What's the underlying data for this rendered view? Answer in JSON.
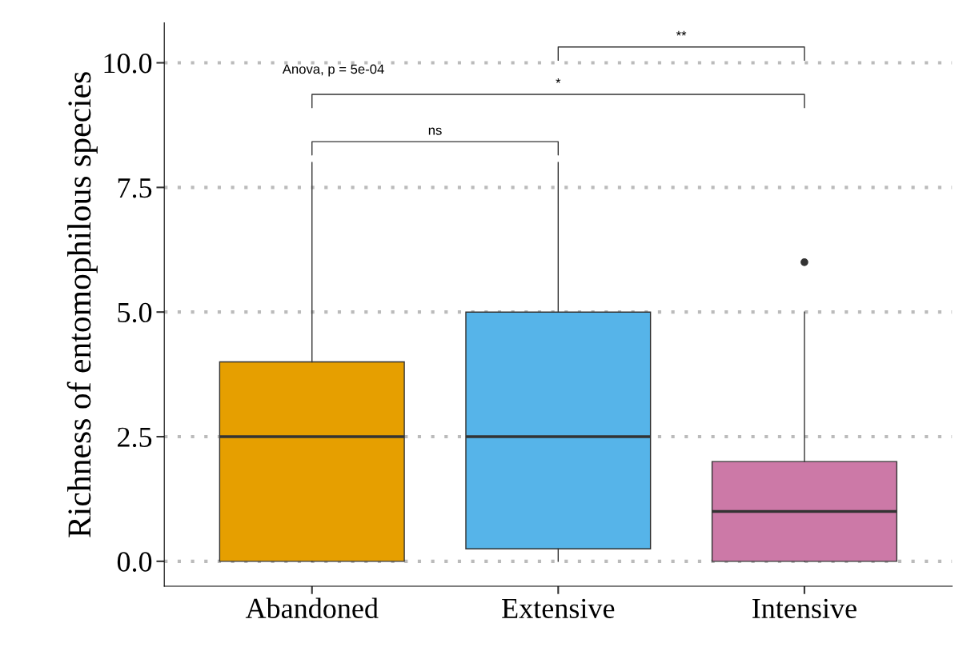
{
  "chart_data": {
    "type": "box",
    "ylabel": "Richness of entomophilous species",
    "categories": [
      "Abandoned",
      "Extensive",
      "Intensive"
    ],
    "colors": [
      "#e69f00",
      "#56b4e9",
      "#cc79a7"
    ],
    "boxes": [
      {
        "low": 0,
        "q1": 0,
        "median": 2.5,
        "q3": 4,
        "high": 8
      },
      {
        "low": 0,
        "q1": 0.25,
        "median": 2.5,
        "q3": 5,
        "high": 8
      },
      {
        "low": 0,
        "q1": 0,
        "median": 1,
        "q3": 2,
        "high": 5,
        "outliers": [
          6
        ]
      }
    ],
    "ylim": [
      -0.5,
      10.8
    ],
    "yticks": [
      {
        "value": 0,
        "label": "0.0"
      },
      {
        "value": 2.5,
        "label": "2.5"
      },
      {
        "value": 5,
        "label": "5.0"
      },
      {
        "value": 7.5,
        "label": "7.5"
      },
      {
        "value": 10,
        "label": "10.0"
      }
    ],
    "grid": "y",
    "annotations": [
      "Anova, p = 5e-04",
      "ns",
      "*",
      "**"
    ]
  }
}
